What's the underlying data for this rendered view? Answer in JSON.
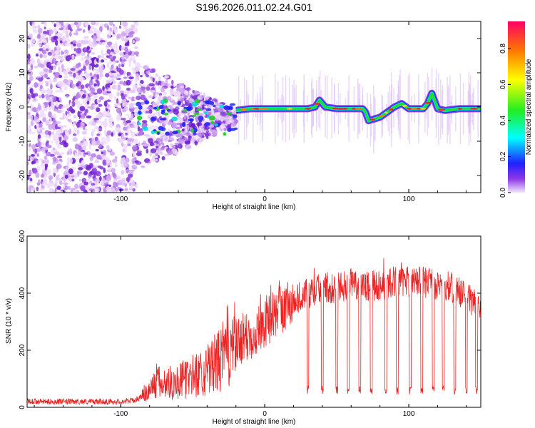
{
  "title": "S196.2026.011.02.24.G01",
  "colorbar": {
    "label": "Normalized spectral amplitude",
    "ticks": [
      "0.0",
      "0.2",
      "0.4",
      "0.6",
      "0.8"
    ],
    "tick_values": [
      0.0,
      0.2,
      0.4,
      0.6,
      0.8
    ],
    "range": [
      0.0,
      0.95
    ]
  },
  "chart_data": [
    {
      "type": "heatmap",
      "name": "spectrogram",
      "xlabel": "Height of straight line (km)",
      "ylabel": "Frequency (Hz)",
      "xlim": [
        -165,
        150
      ],
      "ylim": [
        -25,
        25
      ],
      "x_ticks": [
        -100,
        0,
        100
      ],
      "x_tick_labels": [
        "-100",
        "0",
        "100"
      ],
      "y_ticks": [
        -20,
        -10,
        0,
        10,
        20
      ],
      "y_tick_labels": [
        "-20",
        "-10",
        "0",
        "10",
        "20"
      ],
      "noise_region_km": [
        -165,
        -88
      ],
      "scatter_region_km": [
        -88,
        -20
      ],
      "ridge": {
        "x": [
          -20,
          -10,
          0,
          10,
          20,
          30,
          35,
          38,
          42,
          50,
          60,
          68,
          70,
          72,
          80,
          90,
          95,
          100,
          110,
          113,
          116,
          120,
          125,
          135,
          150
        ],
        "y": [
          -1,
          -0.5,
          -0.5,
          -0.5,
          -0.5,
          -0.5,
          0,
          2,
          0,
          -0.5,
          -0.5,
          -0.5,
          -1.5,
          -4,
          -3,
          0,
          1,
          -0.5,
          -0.5,
          1,
          4,
          -0.5,
          -1,
          -0.5,
          -0.5
        ]
      }
    },
    {
      "type": "line",
      "name": "snr",
      "xlabel": "Height of straight line (km)",
      "ylabel": "SNR (10 * v/v)",
      "xlim": [
        -165,
        150
      ],
      "ylim": [
        0,
        600
      ],
      "x_ticks": [
        -100,
        0,
        100
      ],
      "x_tick_labels": [
        "-100",
        "0",
        "100"
      ],
      "y_ticks": [
        0,
        200,
        400,
        600
      ],
      "y_tick_labels": [
        "0",
        "200",
        "400",
        "600"
      ],
      "color": "#ee2222",
      "envelope": {
        "x": [
          -165,
          -150,
          -100,
          -90,
          -85,
          -80,
          -75,
          -70,
          -60,
          -50,
          -40,
          -30,
          -25,
          -20,
          -10,
          0,
          10,
          20,
          25,
          30,
          40,
          50,
          60,
          70,
          80,
          90,
          100,
          110,
          120,
          130,
          140,
          145,
          150
        ],
        "y": [
          20,
          20,
          20,
          25,
          40,
          60,
          90,
          80,
          90,
          110,
          130,
          170,
          220,
          220,
          250,
          300,
          340,
          370,
          390,
          400,
          420,
          420,
          430,
          420,
          430,
          440,
          440,
          440,
          430,
          420,
          390,
          370,
          360
        ]
      },
      "dropouts_km": [
        30,
        40,
        50,
        58,
        66,
        74,
        84,
        92,
        101,
        109,
        117,
        124,
        132,
        140,
        147
      ],
      "dropout_level": 60
    }
  ]
}
